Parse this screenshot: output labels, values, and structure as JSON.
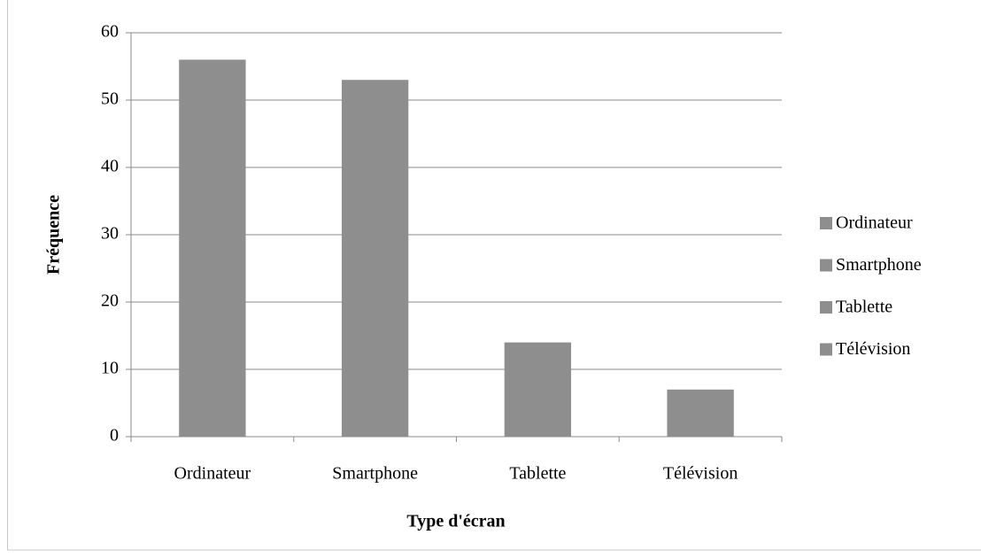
{
  "chart_data": {
    "type": "bar",
    "x_label": "Type d'écran",
    "y_label": "Fréquence",
    "categories": [
      "Ordinateur",
      "Smartphone",
      "Tablette",
      "Télévision"
    ],
    "values": [
      56,
      53,
      14,
      7
    ],
    "color": "#8e8e8e",
    "ylim": [
      0,
      60
    ],
    "yticks": [
      0,
      10,
      20,
      30,
      40,
      50,
      60
    ],
    "grid": true,
    "legend": "right"
  }
}
